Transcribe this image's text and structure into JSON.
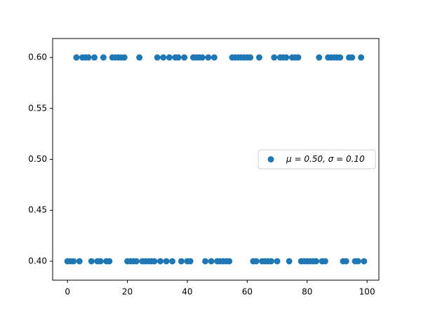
{
  "chart_data": {
    "type": "scatter",
    "x": [
      0,
      1,
      2,
      3,
      4,
      5,
      6,
      7,
      8,
      9,
      10,
      11,
      12,
      13,
      14,
      15,
      16,
      17,
      18,
      19,
      20,
      21,
      22,
      23,
      24,
      25,
      26,
      27,
      28,
      29,
      30,
      31,
      32,
      33,
      34,
      35,
      36,
      37,
      38,
      39,
      40,
      41,
      42,
      43,
      44,
      45,
      46,
      47,
      48,
      49,
      50,
      51,
      52,
      53,
      54,
      55,
      56,
      57,
      58,
      59,
      60,
      61,
      62,
      63,
      64,
      65,
      66,
      67,
      68,
      69,
      70,
      71,
      72,
      73,
      74,
      75,
      76,
      77,
      78,
      79,
      80,
      81,
      82,
      83,
      84,
      85,
      86,
      87,
      88,
      89,
      90,
      91,
      92,
      93,
      94,
      95,
      96,
      97,
      98,
      99
    ],
    "series": [
      {
        "name": "μ = 0.50,  σ = 0.10",
        "color": "#1f77b4",
        "values": [
          0.4,
          0.4,
          0.4,
          0.6,
          0.4,
          0.6,
          0.6,
          0.6,
          0.4,
          0.6,
          0.4,
          0.4,
          0.6,
          0.4,
          0.4,
          0.6,
          0.6,
          0.6,
          0.6,
          0.6,
          0.4,
          0.4,
          0.4,
          0.4,
          0.6,
          0.4,
          0.4,
          0.4,
          0.4,
          0.4,
          0.6,
          0.4,
          0.6,
          0.4,
          0.6,
          0.4,
          0.6,
          0.6,
          0.4,
          0.6,
          0.4,
          0.4,
          0.6,
          0.6,
          0.6,
          0.6,
          0.4,
          0.6,
          0.4,
          0.6,
          0.4,
          0.4,
          0.4,
          0.4,
          0.4,
          0.6,
          0.6,
          0.6,
          0.6,
          0.6,
          0.6,
          0.6,
          0.4,
          0.4,
          0.6,
          0.4,
          0.4,
          0.4,
          0.4,
          0.6,
          0.4,
          0.6,
          0.6,
          0.6,
          0.4,
          0.6,
          0.6,
          0.6,
          0.4,
          0.4,
          0.4,
          0.4,
          0.4,
          0.4,
          0.6,
          0.4,
          0.4,
          0.6,
          0.6,
          0.6,
          0.6,
          0.6,
          0.4,
          0.4,
          0.6,
          0.6,
          0.4,
          0.4,
          0.6,
          0.4
        ]
      }
    ],
    "xlim": [
      -4.95,
      103.95
    ],
    "xticks": [
      0,
      20,
      40,
      60,
      80,
      100
    ],
    "ylim": [
      0.3814,
      0.6186
    ],
    "yticks": [
      {
        "value": 0.4,
        "label": "0.40"
      },
      {
        "value": 0.45,
        "label": "0.45"
      },
      {
        "value": 0.5,
        "label": "0.50"
      },
      {
        "value": 0.55,
        "label": "0.55"
      },
      {
        "value": 0.6,
        "label": "0.60"
      }
    ],
    "legend": "center right"
  }
}
